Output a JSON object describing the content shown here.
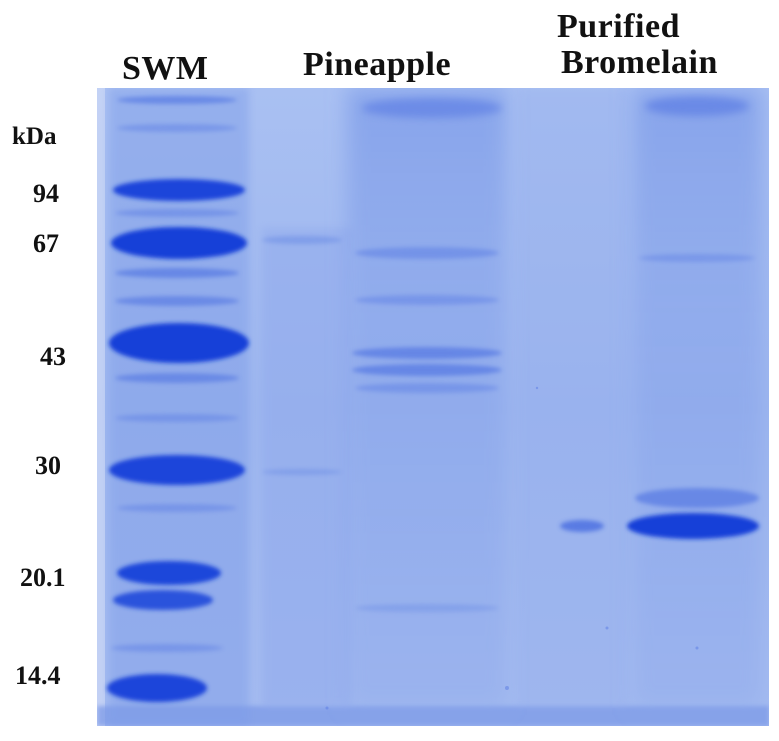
{
  "lanes": {
    "marker": "SWM",
    "sample1": "Pineapple",
    "sample2_line1": "Purified",
    "sample2_line2": "Bromelain"
  },
  "molecular_weight": {
    "unit": "kDa",
    "markers": [
      "94",
      "67",
      "43",
      "30",
      "20.1",
      "14.4"
    ]
  },
  "colors": {
    "gel_background": "#9fb8ef",
    "band_dark": "#1640d8",
    "band_medium": "#3a62e0",
    "band_light": "#7f9ee9"
  }
}
